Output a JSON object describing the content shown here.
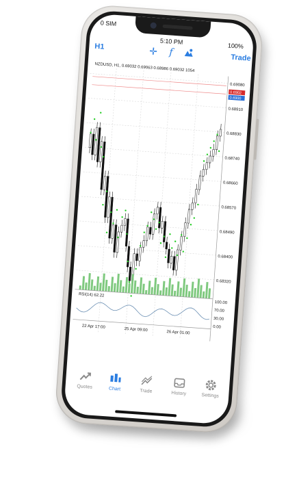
{
  "status": {
    "carrier": "0 SIM",
    "time": "5:10 PM",
    "battery": "100%"
  },
  "toolbar": {
    "timeframe": "H1",
    "trade": "Trade"
  },
  "chart": {
    "header": "NZDUSD, H1, 0.69032 0.69063 0.68986 0.69032 1054",
    "price_labels": [
      "0.69080",
      "0.68910",
      "0.68830",
      "0.68740",
      "0.68660",
      "0.68570",
      "0.68490",
      "0.68400",
      "0.68320"
    ],
    "bid_label": "0.6902",
    "ask_label": "0.6900",
    "indicator_label": "RSI(14) 62.22",
    "rsi_labels": [
      "100.00",
      "70.00",
      "30.00",
      "0.00"
    ],
    "time_labels": [
      "22 Apr 17:00",
      "25 Apr 09:00",
      "26 Apr 01:00"
    ]
  },
  "tabs": [
    {
      "label": "Quotes",
      "icon": "quotes-icon"
    },
    {
      "label": "Chart",
      "icon": "chart-icon"
    },
    {
      "label": "Trade",
      "icon": "trade-icon"
    },
    {
      "label": "History",
      "icon": "history-icon"
    },
    {
      "label": "Settings",
      "icon": "settings-icon"
    }
  ],
  "colors": {
    "accent": "#2a7de1",
    "sar_dot": "#22cc22",
    "volume": "#7fc97f",
    "bid": "#d62a2a",
    "ask": "#2a6fd6"
  }
}
